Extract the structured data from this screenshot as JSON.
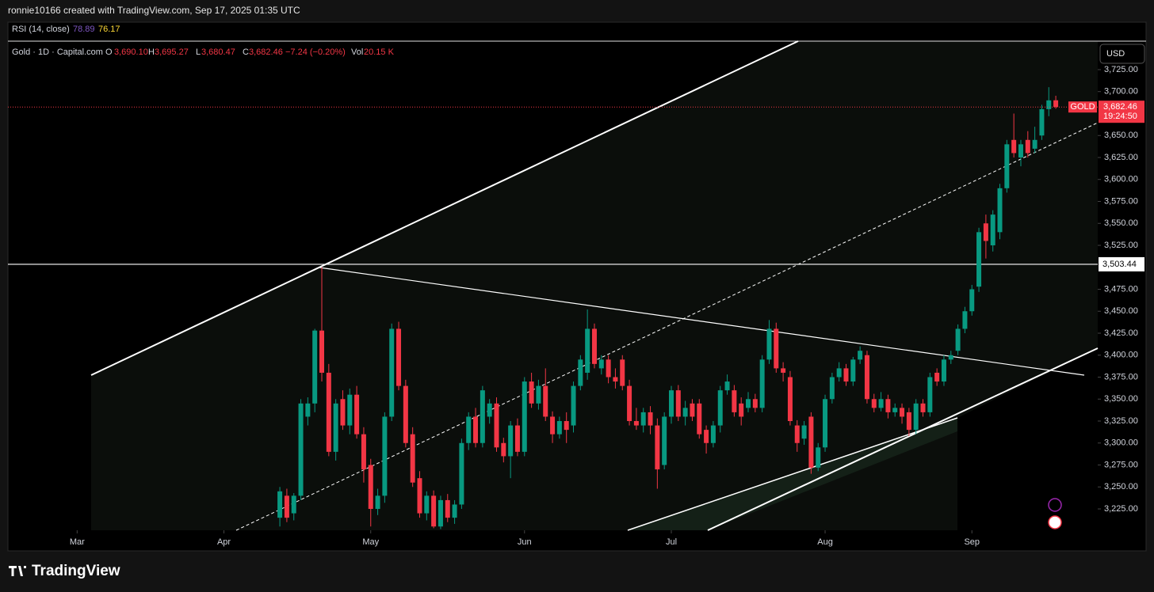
{
  "header": {
    "credit": "ronnie10166 created with TradingView.com, Sep 17, 2025 01:35 UTC"
  },
  "indicator": {
    "name": "RSI (14, close)",
    "value1": "78.89",
    "value2": "76.17"
  },
  "symbol": {
    "name": "Gold · 1D · Capital.com",
    "o_key": "O",
    "o": "3,690.10",
    "h_key": "H",
    "h": "3,695.27",
    "l_key": "L",
    "l": "3,680.47",
    "c_key": "C",
    "c": "3,682.46",
    "change": "−7.24 (−0.20%)",
    "vol_key": "Vol",
    "vol": "20.15 K"
  },
  "currency": "USD",
  "footer": {
    "brand": "TradingView"
  },
  "chart_data": {
    "type": "candlestick",
    "colors": {
      "up": "#089981",
      "down": "#f23645"
    },
    "ylim": [
      3200.7,
      3757.4
    ],
    "yticks": [
      {
        "value": 3225,
        "label": "3,225.00"
      },
      {
        "value": 3250,
        "label": "3,250.00"
      },
      {
        "value": 3275,
        "label": "3,275.00"
      },
      {
        "value": 3300,
        "label": "3,300.00"
      },
      {
        "value": 3325,
        "label": "3,325.00"
      },
      {
        "value": 3350,
        "label": "3,350.00"
      },
      {
        "value": 3375,
        "label": "3,375.00"
      },
      {
        "value": 3400,
        "label": "3,400.00"
      },
      {
        "value": 3425,
        "label": "3,425.00"
      },
      {
        "value": 3450,
        "label": "3,450.00"
      },
      {
        "value": 3475,
        "label": "3,475.00"
      },
      {
        "value": 3525,
        "label": "3,525.00"
      },
      {
        "value": 3550,
        "label": "3,550.00"
      },
      {
        "value": 3575,
        "label": "3,575.00"
      },
      {
        "value": 3600,
        "label": "3,600.00"
      },
      {
        "value": 3625,
        "label": "3,625.00"
      },
      {
        "value": 3650,
        "label": "3,650.00"
      },
      {
        "value": 3700,
        "label": "3,700.00"
      },
      {
        "value": 3725,
        "label": "3,725.00"
      }
    ],
    "xlim": [
      -9.9,
      146
    ],
    "xticks": [
      {
        "value": 0,
        "label": "Mar"
      },
      {
        "value": 21,
        "label": "Apr"
      },
      {
        "value": 42,
        "label": "May"
      },
      {
        "value": 64,
        "label": "Jun"
      },
      {
        "value": 85,
        "label": "Jul"
      },
      {
        "value": 107,
        "label": "Aug"
      },
      {
        "value": 128,
        "label": "Sep"
      }
    ],
    "hline": {
      "value": 3503.44,
      "label": "3,503.44"
    },
    "last_price": {
      "value": 3682.46,
      "symbol": "GOLD",
      "label": "3,682.46",
      "countdown": "19:24:50"
    },
    "x": [
      29,
      30,
      31,
      32,
      33,
      34,
      35,
      36,
      37,
      38,
      39,
      40,
      41,
      42,
      43,
      44,
      45,
      46,
      47,
      48,
      49,
      50,
      51,
      52,
      53,
      54,
      55,
      56,
      57,
      58,
      59,
      60,
      61,
      62,
      63,
      64,
      65,
      66,
      67,
      68,
      69,
      70,
      71,
      72,
      73,
      74,
      75,
      76,
      77,
      78,
      79,
      80,
      81,
      82,
      83,
      84,
      85,
      86,
      87,
      88,
      89,
      90,
      91,
      92,
      93,
      94,
      95,
      96,
      97,
      98,
      99,
      100,
      101,
      102,
      103,
      104,
      105,
      106,
      107,
      108,
      109,
      110,
      111,
      112,
      113,
      114,
      115,
      116,
      117,
      118,
      119,
      120,
      121,
      122,
      123,
      124,
      125,
      126,
      127,
      128,
      129,
      130,
      131,
      132,
      133,
      134,
      135,
      136,
      137,
      138,
      139,
      140
    ],
    "ohlc": [
      [
        3215,
        3250,
        3205,
        3245
      ],
      [
        3240,
        3248,
        3210,
        3215
      ],
      [
        3220,
        3243,
        3212,
        3240
      ],
      [
        3240,
        3350,
        3235,
        3345
      ],
      [
        3330,
        3352,
        3320,
        3345
      ],
      [
        3345,
        3430,
        3335,
        3428
      ],
      [
        3428,
        3500,
        3370,
        3380
      ],
      [
        3380,
        3390,
        3285,
        3290
      ],
      [
        3290,
        3350,
        3280,
        3345
      ],
      [
        3350,
        3360,
        3315,
        3320
      ],
      [
        3320,
        3362,
        3310,
        3355
      ],
      [
        3355,
        3365,
        3305,
        3310
      ],
      [
        3310,
        3318,
        3255,
        3270
      ],
      [
        3275,
        3282,
        3205,
        3225
      ],
      [
        3225,
        3248,
        3218,
        3240
      ],
      [
        3240,
        3335,
        3232,
        3330
      ],
      [
        3330,
        3436,
        3325,
        3430
      ],
      [
        3430,
        3438,
        3360,
        3365
      ],
      [
        3365,
        3372,
        3295,
        3300
      ],
      [
        3310,
        3318,
        3250,
        3255
      ],
      [
        3260,
        3268,
        3215,
        3220
      ],
      [
        3220,
        3245,
        3212,
        3240
      ],
      [
        3240,
        3246,
        3203,
        3205
      ],
      [
        3205,
        3240,
        3202,
        3235
      ],
      [
        3235,
        3242,
        3210,
        3215
      ],
      [
        3215,
        3235,
        3208,
        3230
      ],
      [
        3230,
        3305,
        3225,
        3300
      ],
      [
        3300,
        3335,
        3292,
        3330
      ],
      [
        3330,
        3340,
        3295,
        3300
      ],
      [
        3300,
        3365,
        3295,
        3360
      ],
      [
        3330,
        3350,
        3322,
        3345
      ],
      [
        3345,
        3352,
        3290,
        3295
      ],
      [
        3300,
        3306,
        3278,
        3285
      ],
      [
        3285,
        3325,
        3260,
        3320
      ],
      [
        3320,
        3328,
        3285,
        3290
      ],
      [
        3290,
        3375,
        3285,
        3370
      ],
      [
        3370,
        3380,
        3340,
        3345
      ],
      [
        3345,
        3372,
        3338,
        3365
      ],
      [
        3365,
        3385,
        3325,
        3330
      ],
      [
        3330,
        3336,
        3300,
        3310
      ],
      [
        3310,
        3330,
        3305,
        3325
      ],
      [
        3325,
        3335,
        3300,
        3315
      ],
      [
        3320,
        3370,
        3312,
        3365
      ],
      [
        3365,
        3400,
        3360,
        3395
      ],
      [
        3380,
        3452,
        3372,
        3430
      ],
      [
        3430,
        3436,
        3385,
        3390
      ],
      [
        3385,
        3400,
        3378,
        3395
      ],
      [
        3395,
        3400,
        3368,
        3375
      ],
      [
        3375,
        3385,
        3362,
        3370
      ],
      [
        3395,
        3400,
        3360,
        3365
      ],
      [
        3365,
        3372,
        3320,
        3325
      ],
      [
        3325,
        3340,
        3315,
        3320
      ],
      [
        3320,
        3340,
        3312,
        3335
      ],
      [
        3335,
        3342,
        3310,
        3320
      ],
      [
        3320,
        3328,
        3248,
        3270
      ],
      [
        3275,
        3335,
        3270,
        3330
      ],
      [
        3330,
        3365,
        3322,
        3360
      ],
      [
        3360,
        3366,
        3325,
        3330
      ],
      [
        3330,
        3348,
        3320,
        3340
      ],
      [
        3345,
        3350,
        3325,
        3330
      ],
      [
        3345,
        3350,
        3305,
        3310
      ],
      [
        3315,
        3320,
        3288,
        3300
      ],
      [
        3300,
        3325,
        3295,
        3320
      ],
      [
        3320,
        3365,
        3312,
        3360
      ],
      [
        3360,
        3378,
        3355,
        3370
      ],
      [
        3360,
        3366,
        3330,
        3335
      ],
      [
        3345,
        3352,
        3320,
        3330
      ],
      [
        3340,
        3358,
        3335,
        3350
      ],
      [
        3350,
        3356,
        3335,
        3340
      ],
      [
        3340,
        3400,
        3335,
        3395
      ],
      [
        3395,
        3440,
        3390,
        3430
      ],
      [
        3430,
        3437,
        3380,
        3385
      ],
      [
        3385,
        3392,
        3370,
        3380
      ],
      [
        3375,
        3382,
        3320,
        3325
      ],
      [
        3320,
        3326,
        3290,
        3300
      ],
      [
        3305,
        3325,
        3298,
        3320
      ],
      [
        3330,
        3335,
        3265,
        3272
      ],
      [
        3272,
        3300,
        3268,
        3295
      ],
      [
        3295,
        3355,
        3290,
        3350
      ],
      [
        3350,
        3380,
        3345,
        3375
      ],
      [
        3375,
        3392,
        3370,
        3385
      ],
      [
        3385,
        3390,
        3365,
        3370
      ],
      [
        3370,
        3398,
        3365,
        3395
      ],
      [
        3395,
        3410,
        3390,
        3405
      ],
      [
        3400,
        3405,
        3345,
        3350
      ],
      [
        3350,
        3356,
        3335,
        3340
      ],
      [
        3340,
        3358,
        3336,
        3350
      ],
      [
        3350,
        3355,
        3328,
        3335
      ],
      [
        3335,
        3345,
        3330,
        3340
      ],
      [
        3340,
        3345,
        3322,
        3330
      ],
      [
        3335,
        3340,
        3308,
        3315
      ],
      [
        3315,
        3350,
        3310,
        3345
      ],
      [
        3345,
        3350,
        3330,
        3335
      ],
      [
        3335,
        3380,
        3330,
        3375
      ],
      [
        3380,
        3385,
        3365,
        3370
      ],
      [
        3370,
        3400,
        3365,
        3395
      ],
      [
        3395,
        3405,
        3390,
        3400
      ],
      [
        3405,
        3435,
        3400,
        3430
      ],
      [
        3430,
        3455,
        3425,
        3450
      ],
      [
        3450,
        3480,
        3445,
        3475
      ],
      [
        3478,
        3545,
        3472,
        3540
      ],
      [
        3550,
        3560,
        3510,
        3530
      ],
      [
        3525,
        3565,
        3518,
        3560
      ],
      [
        3540,
        3595,
        3532,
        3590
      ],
      [
        3590,
        3645,
        3585,
        3640
      ],
      [
        3645,
        3675,
        3625,
        3630
      ],
      [
        3625,
        3645,
        3615,
        3640
      ],
      [
        3645,
        3655,
        3625,
        3630
      ],
      [
        3635,
        3660,
        3630,
        3645
      ],
      [
        3650,
        3685,
        3645,
        3680
      ],
      [
        3680,
        3705,
        3672,
        3690
      ],
      [
        3690.1,
        3695.27,
        3680.47,
        3682.46
      ]
    ]
  }
}
